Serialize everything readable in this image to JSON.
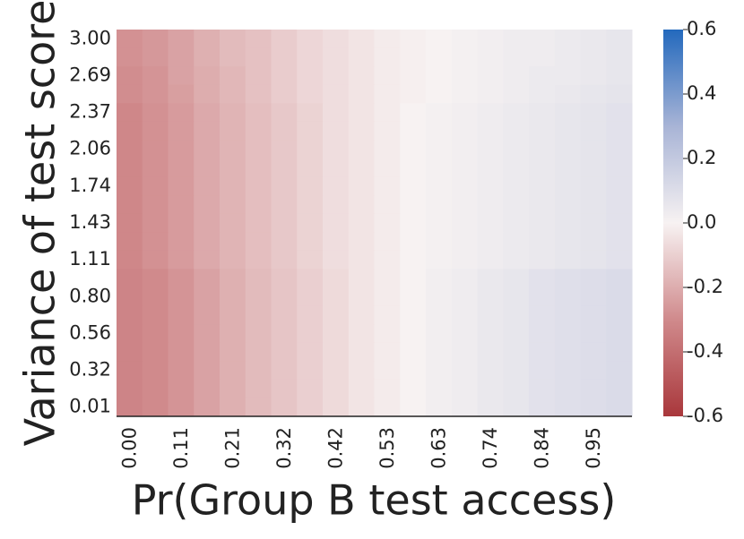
{
  "chart_data": {
    "type": "heatmap",
    "xlabel": "Pr(Group B test access)",
    "ylabel": "Variance of test score",
    "categories": [
      "0.00",
      null,
      "0.11",
      null,
      "0.21",
      null,
      "0.32",
      null,
      "0.42",
      null,
      "0.53",
      null,
      "0.63",
      null,
      "0.74",
      null,
      "0.84",
      null,
      "0.95",
      null
    ],
    "rows": [
      "3.00",
      null,
      "2.69",
      null,
      "2.37",
      null,
      "2.06",
      null,
      "1.74",
      null,
      "1.43",
      null,
      "1.11",
      null,
      "0.80",
      null,
      "0.56",
      null,
      "0.32",
      null,
      "0.01"
    ],
    "values": [
      [
        -0.28,
        -0.26,
        -0.23,
        -0.19,
        -0.16,
        -0.14,
        -0.11,
        -0.08,
        -0.06,
        -0.04,
        -0.02,
        -0.01,
        0.0,
        0.01,
        0.02,
        0.03,
        0.03,
        0.04,
        0.05,
        0.06
      ],
      [
        -0.28,
        -0.26,
        -0.23,
        -0.19,
        -0.16,
        -0.14,
        -0.11,
        -0.08,
        -0.06,
        -0.04,
        -0.02,
        -0.01,
        0.0,
        0.01,
        0.02,
        0.03,
        0.03,
        0.04,
        0.05,
        0.06
      ],
      [
        -0.29,
        -0.27,
        -0.23,
        -0.2,
        -0.17,
        -0.14,
        -0.11,
        -0.08,
        -0.06,
        -0.04,
        -0.02,
        -0.01,
        0.0,
        0.01,
        0.02,
        0.03,
        0.04,
        0.04,
        0.05,
        0.06
      ],
      [
        -0.29,
        -0.27,
        -0.24,
        -0.2,
        -0.17,
        -0.14,
        -0.11,
        -0.08,
        -0.06,
        -0.04,
        -0.02,
        -0.01,
        0.0,
        0.01,
        0.02,
        0.03,
        0.04,
        0.05,
        0.06,
        0.07
      ],
      [
        -0.31,
        -0.28,
        -0.25,
        -0.21,
        -0.18,
        -0.15,
        -0.12,
        -0.09,
        -0.06,
        -0.04,
        -0.02,
        0.0,
        0.01,
        0.02,
        0.03,
        0.04,
        0.05,
        0.06,
        0.07,
        0.08
      ],
      [
        -0.31,
        -0.28,
        -0.25,
        -0.21,
        -0.18,
        -0.15,
        -0.12,
        -0.09,
        -0.06,
        -0.04,
        -0.02,
        0.0,
        0.01,
        0.02,
        0.03,
        0.04,
        0.05,
        0.06,
        0.07,
        0.08
      ],
      [
        -0.31,
        -0.28,
        -0.25,
        -0.21,
        -0.18,
        -0.15,
        -0.12,
        -0.09,
        -0.06,
        -0.04,
        -0.02,
        0.0,
        0.01,
        0.02,
        0.03,
        0.04,
        0.05,
        0.06,
        0.07,
        0.08
      ],
      [
        -0.31,
        -0.28,
        -0.25,
        -0.21,
        -0.18,
        -0.15,
        -0.12,
        -0.09,
        -0.06,
        -0.04,
        -0.02,
        0.0,
        0.01,
        0.02,
        0.03,
        0.04,
        0.05,
        0.06,
        0.07,
        0.08
      ],
      [
        -0.31,
        -0.28,
        -0.25,
        -0.21,
        -0.18,
        -0.15,
        -0.12,
        -0.09,
        -0.06,
        -0.04,
        -0.02,
        0.0,
        0.01,
        0.02,
        0.03,
        0.04,
        0.05,
        0.06,
        0.07,
        0.08
      ],
      [
        -0.31,
        -0.28,
        -0.25,
        -0.21,
        -0.18,
        -0.15,
        -0.12,
        -0.09,
        -0.06,
        -0.04,
        -0.02,
        0.0,
        0.01,
        0.02,
        0.03,
        0.04,
        0.05,
        0.06,
        0.07,
        0.08
      ],
      [
        -0.31,
        -0.28,
        -0.25,
        -0.21,
        -0.18,
        -0.15,
        -0.12,
        -0.09,
        -0.06,
        -0.04,
        -0.02,
        0.0,
        0.01,
        0.02,
        0.03,
        0.04,
        0.05,
        0.06,
        0.07,
        0.08
      ],
      [
        -0.31,
        -0.28,
        -0.25,
        -0.21,
        -0.18,
        -0.15,
        -0.12,
        -0.09,
        -0.06,
        -0.04,
        -0.02,
        0.0,
        0.01,
        0.02,
        0.03,
        0.04,
        0.05,
        0.06,
        0.07,
        0.08
      ],
      [
        -0.31,
        -0.28,
        -0.25,
        -0.21,
        -0.18,
        -0.15,
        -0.12,
        -0.09,
        -0.06,
        -0.04,
        -0.02,
        0.0,
        0.01,
        0.02,
        0.03,
        0.04,
        0.05,
        0.06,
        0.07,
        0.08
      ],
      [
        -0.32,
        -0.3,
        -0.27,
        -0.23,
        -0.19,
        -0.16,
        -0.13,
        -0.1,
        -0.07,
        -0.04,
        -0.02,
        0.0,
        0.02,
        0.03,
        0.05,
        0.06,
        0.08,
        0.09,
        0.1,
        0.11
      ],
      [
        -0.32,
        -0.3,
        -0.27,
        -0.23,
        -0.19,
        -0.16,
        -0.13,
        -0.1,
        -0.07,
        -0.04,
        -0.02,
        0.0,
        0.02,
        0.03,
        0.05,
        0.06,
        0.08,
        0.09,
        0.1,
        0.11
      ],
      [
        -0.32,
        -0.3,
        -0.27,
        -0.23,
        -0.19,
        -0.16,
        -0.13,
        -0.1,
        -0.07,
        -0.04,
        -0.02,
        0.0,
        0.02,
        0.03,
        0.05,
        0.06,
        0.08,
        0.09,
        0.1,
        0.11
      ],
      [
        -0.32,
        -0.3,
        -0.27,
        -0.23,
        -0.19,
        -0.16,
        -0.13,
        -0.1,
        -0.07,
        -0.04,
        -0.02,
        0.0,
        0.02,
        0.03,
        0.05,
        0.06,
        0.08,
        0.09,
        0.1,
        0.11
      ],
      [
        -0.32,
        -0.3,
        -0.27,
        -0.23,
        -0.19,
        -0.16,
        -0.13,
        -0.1,
        -0.07,
        -0.04,
        -0.02,
        0.0,
        0.02,
        0.03,
        0.05,
        0.06,
        0.08,
        0.09,
        0.1,
        0.11
      ],
      [
        -0.32,
        -0.3,
        -0.27,
        -0.23,
        -0.19,
        -0.16,
        -0.13,
        -0.1,
        -0.07,
        -0.04,
        -0.02,
        0.0,
        0.02,
        0.03,
        0.05,
        0.06,
        0.08,
        0.09,
        0.1,
        0.11
      ],
      [
        -0.32,
        -0.3,
        -0.27,
        -0.23,
        -0.19,
        -0.16,
        -0.13,
        -0.1,
        -0.07,
        -0.04,
        -0.02,
        0.0,
        0.02,
        0.03,
        0.05,
        0.06,
        0.08,
        0.09,
        0.1,
        0.11
      ],
      [
        -0.32,
        -0.3,
        -0.27,
        -0.23,
        -0.19,
        -0.16,
        -0.13,
        -0.1,
        -0.07,
        -0.04,
        -0.02,
        0.0,
        0.02,
        0.03,
        0.05,
        0.06,
        0.08,
        0.09,
        0.1,
        0.11
      ]
    ],
    "clim": [
      -0.6,
      0.6
    ],
    "colormap": [
      [
        -0.6,
        "#a9373b"
      ],
      [
        -0.3,
        "#d08a8c"
      ],
      [
        0,
        "#f7f2f2"
      ],
      [
        0.3,
        "#a8b4d6"
      ],
      [
        0.6,
        "#2369bd"
      ]
    ],
    "cticks": [
      -0.6,
      -0.4,
      -0.2,
      {
        "value": 0,
        "label": "0.0"
      },
      0.2,
      0.4,
      0.6
    ]
  }
}
